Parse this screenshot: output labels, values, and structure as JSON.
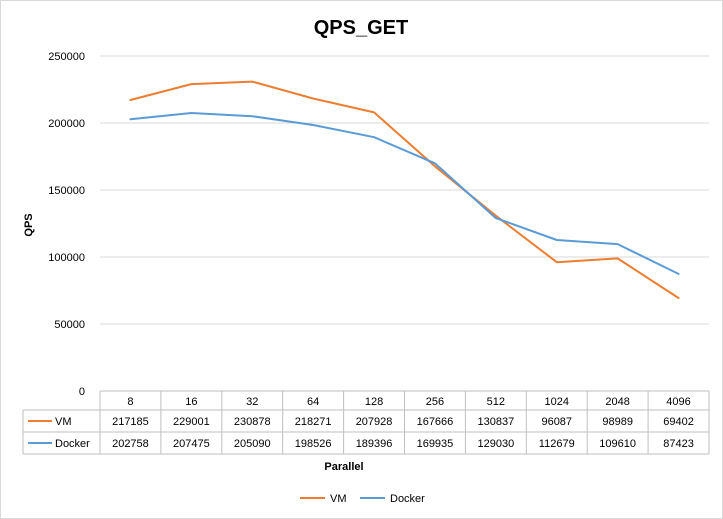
{
  "chart_data": {
    "type": "line",
    "title": "QPS_GET",
    "xlabel": "Parallel",
    "ylabel": "QPS",
    "categories": [
      "8",
      "16",
      "32",
      "64",
      "128",
      "256",
      "512",
      "1024",
      "2048",
      "4096"
    ],
    "ylim": [
      0,
      250000
    ],
    "yticks": [
      0,
      50000,
      100000,
      150000,
      200000,
      250000
    ],
    "yticks_labels": [
      "0",
      "50000",
      "100000",
      "150000",
      "200000",
      "250000"
    ],
    "grid": true,
    "legend_position": "bottom",
    "series": [
      {
        "name": "VM",
        "color": "#ED7D31",
        "values": [
          217185,
          229001,
          230878,
          218271,
          207928,
          167666,
          130837,
          96087,
          98989,
          69402
        ]
      },
      {
        "name": "Docker",
        "color": "#5B9BD5",
        "values": [
          202758,
          207475,
          205090,
          198526,
          189396,
          169935,
          129030,
          112679,
          109610,
          87423
        ]
      }
    ]
  }
}
